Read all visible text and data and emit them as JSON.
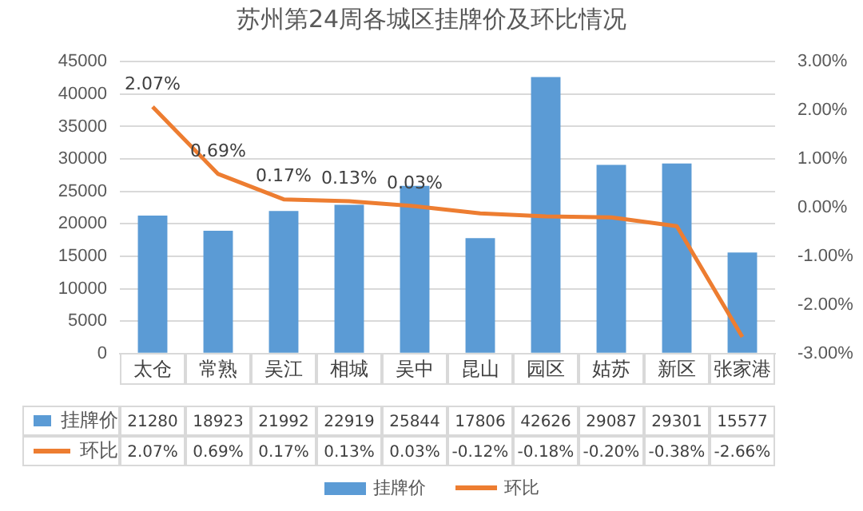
{
  "chart_data": {
    "type": "bar",
    "title": "苏州第24周各城区挂牌价及环比情况",
    "categories": [
      "太仓",
      "常熟",
      "吴江",
      "相城",
      "吴中",
      "昆山",
      "园区",
      "姑苏",
      "新区",
      "张家港"
    ],
    "series": [
      {
        "name": "挂牌价",
        "color": "#5b9bd5",
        "values": [
          21280,
          18923,
          21992,
          22919,
          25844,
          17806,
          42626,
          29087,
          29301,
          15577
        ]
      },
      {
        "name": "环比",
        "type": "line",
        "axis": "y2",
        "color": "#ed7d31",
        "marker": "none",
        "values": [
          2.07,
          0.69,
          0.17,
          0.13,
          0.03,
          -0.12,
          -0.18,
          -0.2,
          -0.38,
          -2.66
        ],
        "value_labels": [
          "2.07%",
          "0.69%",
          "0.17%",
          "0.13%",
          "0.03%",
          "-0.12%",
          "-0.18%",
          "-0.20%",
          "-0.38%",
          "-2.66%"
        ]
      }
    ],
    "ylim": [
      0,
      45000
    ],
    "yticks": [
      0,
      5000,
      10000,
      15000,
      20000,
      25000,
      30000,
      35000,
      40000,
      45000
    ],
    "y2lim": [
      -3,
      3
    ],
    "y2ticks": [
      {
        "value": -3,
        "label": "-3.00%"
      },
      {
        "value": -2,
        "label": "-2.00%"
      },
      {
        "value": -1,
        "label": "-1.00%"
      },
      {
        "value": 0,
        "label": "0.00%"
      },
      {
        "value": 1,
        "label": "1.00%"
      },
      {
        "value": 2,
        "label": "2.00%"
      },
      {
        "value": 3,
        "label": "3.00%"
      }
    ],
    "annotations": [
      "2.07%",
      "0.69%",
      "0.17%",
      "0.13%",
      "0.03%"
    ],
    "data_labels": true,
    "grid": "y",
    "legend": "bottom"
  }
}
